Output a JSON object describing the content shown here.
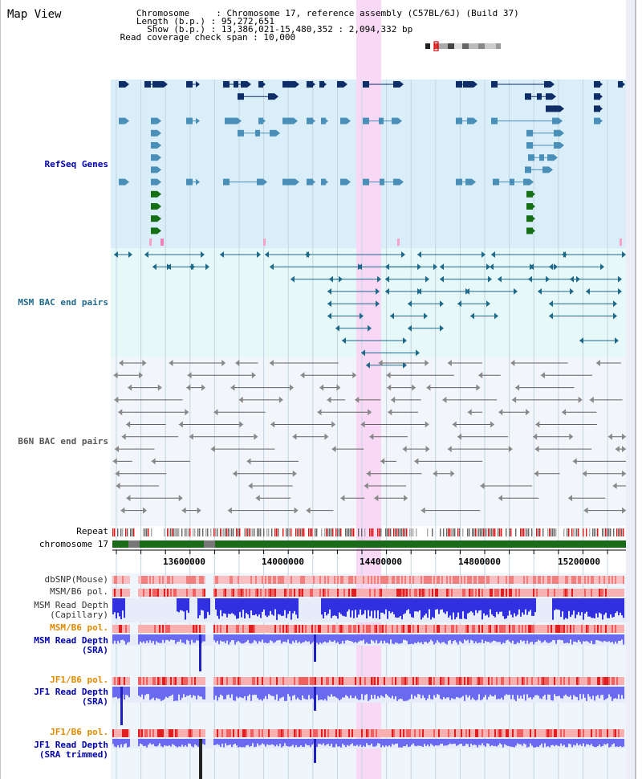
{
  "view_title": "Map View",
  "header": {
    "lines": [
      "   Chromosome     : Chromosome 17, reference assembly (C57BL/6J) (Build 37)",
      "   Length (b.p.) : 95,272,651",
      "     Show (b.p.) : 13,386,021-15,480,352 : 2,094,332 bp",
      " Read coverage check span : 10,000"
    ]
  },
  "tracks": {
    "refseq": "RefSeq Genes",
    "msm_bac": "MSM BAC end pairs",
    "b6n_bac": "B6N BAC end pairs",
    "repeat": "Repeat",
    "chromosome": "chromosome 17",
    "dbsnp": "dbSNP(Mouse)",
    "msm_b6_pol_1": "MSM/B6 pol.",
    "msm_read_depth_cap_1": "MSM Read Depth",
    "msm_read_depth_cap_2": "(Capillary)",
    "msm_b6_pol_2": "MSM/B6 pol.",
    "msm_read_depth_sra_1": "MSM Read Depth",
    "msm_read_depth_sra_2": "(SRA)",
    "jf1_b6_pol_1": "JF1/B6 pol.",
    "jf1_read_depth_sra_1": "JF1 Read Depth",
    "jf1_read_depth_sra_2": "(SRA)",
    "jf1_b6_pol_2": "JF1/B6 pol.",
    "jf1_read_depth_trim_1": "JF1 Read Depth",
    "jf1_read_depth_trim_2": "(SRA trimmed)"
  },
  "axis": {
    "ticks": [
      "13600000",
      "14000000",
      "14400000",
      "14800000",
      "15200000"
    ]
  },
  "colors": {
    "refseq_bg": "#d9eef8",
    "bac_bg": "#e6f8f8",
    "b6n_bg": "#f2f6fa",
    "highlight": "#f8d8f4",
    "gene_dark": "#0f2d66",
    "gene_mid": "#4a8fb8",
    "gene_green": "#157015",
    "msm_bac": "#1f6a8a",
    "b6n_bac": "#606060",
    "snp": "#f08080",
    "depth": "#3030e0",
    "sra_depth": "#6a6af0",
    "pol_label": "#e08a00",
    "depth_label": "#0000aa"
  }
}
